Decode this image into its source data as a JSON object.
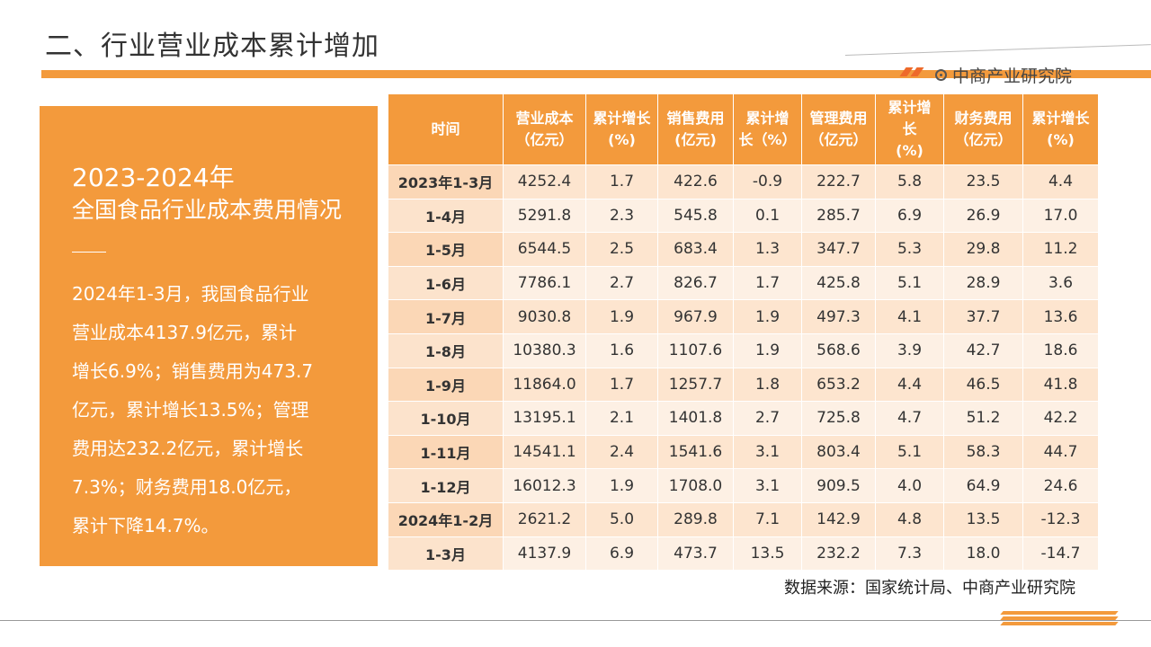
{
  "title": "二、行业营业成本累计增加",
  "logo_text": "中商产业研究院",
  "colors": {
    "accent": "#f39a3c",
    "stripe": "#ee6a2a"
  },
  "panel": {
    "year": "2023-2024年",
    "subtitle": "全国食品行业成本费用情况",
    "body_lines": [
      "2024年1-3月，我国食品行业",
      "营业成本4137.9亿元，累计",
      "增长6.9%；销售费用为473.7",
      "亿元，累计增长13.5%；管理",
      "费用达232.2亿元，累计增长",
      "7.3%；财务费用18.0亿元，",
      "累计下降14.7%。"
    ]
  },
  "table": {
    "headers": [
      [
        "时间"
      ],
      [
        "营业成本",
        "（亿元）"
      ],
      [
        "累计增长",
        "(%)"
      ],
      [
        "销售费用",
        "(亿元)"
      ],
      [
        "累计增",
        "长（%）"
      ],
      [
        "管理费用",
        "（亿元）"
      ],
      [
        "累计增",
        "长",
        "(%)"
      ],
      [
        "财务费用",
        "（亿元）"
      ],
      [
        "累计增长",
        "(%)"
      ]
    ],
    "rows": [
      [
        "2023年1-3月",
        "4252.4",
        "1.7",
        "422.6",
        "-0.9",
        "222.7",
        "5.8",
        "23.5",
        "4.4"
      ],
      [
        "1-4月",
        "5291.8",
        "2.3",
        "545.8",
        "0.1",
        "285.7",
        "6.9",
        "26.9",
        "17.0"
      ],
      [
        "1-5月",
        "6544.5",
        "2.5",
        "683.4",
        "1.3",
        "347.7",
        "5.3",
        "29.8",
        "11.2"
      ],
      [
        "1-6月",
        "7786.1",
        "2.7",
        "826.7",
        "1.7",
        "425.8",
        "5.1",
        "28.9",
        "3.6"
      ],
      [
        "1-7月",
        "9030.8",
        "1.9",
        "967.9",
        "1.9",
        "497.3",
        "4.1",
        "37.7",
        "13.6"
      ],
      [
        "1-8月",
        "10380.3",
        "1.6",
        "1107.6",
        "1.9",
        "568.6",
        "3.9",
        "42.7",
        "18.6"
      ],
      [
        "1-9月",
        "11864.0",
        "1.7",
        "1257.7",
        "1.8",
        "653.2",
        "4.4",
        "46.5",
        "41.8"
      ],
      [
        "1-10月",
        "13195.1",
        "2.1",
        "1401.8",
        "2.7",
        "725.8",
        "4.7",
        "51.2",
        "42.2"
      ],
      [
        "1-11月",
        "14541.1",
        "2.4",
        "1541.6",
        "3.1",
        "803.4",
        "5.1",
        "58.3",
        "44.7"
      ],
      [
        "1-12月",
        "16012.3",
        "1.9",
        "1708.0",
        "3.1",
        "909.5",
        "4.0",
        "64.9",
        "24.6"
      ],
      [
        "2024年1-2月",
        "2621.2",
        "5.0",
        "289.8",
        "7.1",
        "142.9",
        "4.8",
        "13.5",
        "-12.3"
      ],
      [
        "1-3月",
        "4137.9",
        "6.9",
        "473.7",
        "13.5",
        "232.2",
        "7.3",
        "18.0",
        "-14.7"
      ]
    ]
  },
  "source": "数据来源：国家统计局、中商产业研究院"
}
